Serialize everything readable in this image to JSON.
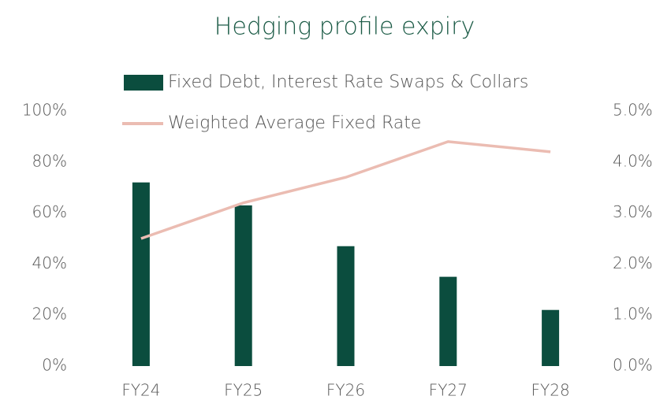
{
  "chart_data": {
    "type": "bar-line",
    "title": "Hedging profile expiry",
    "categories": [
      "FY24",
      "FY25",
      "FY26",
      "FY27",
      "FY28"
    ],
    "series": [
      {
        "name": "Fixed Debt, Interest Rate Swaps & Collars",
        "type": "bar",
        "color": "#0b4d3e",
        "values": [
          72,
          63,
          47,
          35,
          22
        ]
      },
      {
        "name": "Weighted Average Fixed Rate",
        "type": "line",
        "axis": "y2",
        "color": "#ebbcb2",
        "values": [
          2.5,
          3.2,
          3.7,
          4.4,
          4.2
        ]
      }
    ],
    "ylim": [
      0,
      100
    ],
    "yticks": [
      {
        "value": 0,
        "label": "0%"
      },
      {
        "value": 20,
        "label": "20%"
      },
      {
        "value": 40,
        "label": "40%"
      },
      {
        "value": 60,
        "label": "60%"
      },
      {
        "value": 80,
        "label": "80%"
      },
      {
        "value": 100,
        "label": "100%"
      }
    ],
    "y2lim": [
      0,
      5
    ],
    "y2ticks": [
      {
        "value": 0,
        "label": "0.0%"
      },
      {
        "value": 1,
        "label": "1.0%"
      },
      {
        "value": 2,
        "label": "2.0%"
      },
      {
        "value": 3,
        "label": "3.0%"
      },
      {
        "value": 4,
        "label": "4.0%"
      },
      {
        "value": 5,
        "label": "5.0%"
      }
    ],
    "grid": false,
    "legend": "top"
  }
}
